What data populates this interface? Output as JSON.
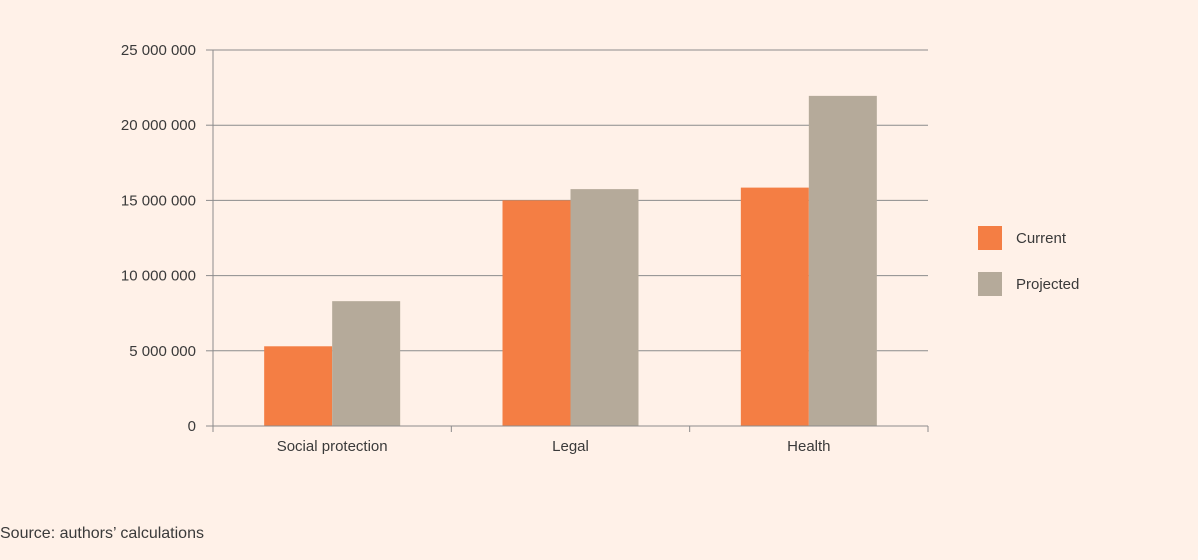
{
  "chart_data": {
    "type": "bar",
    "categories": [
      "Social protection",
      "Legal",
      "Health"
    ],
    "series": [
      {
        "name": "Current",
        "values": [
          5300000,
          15000000,
          15850000
        ],
        "color": "#f47e44"
      },
      {
        "name": "Projected",
        "values": [
          8300000,
          15750000,
          21950000
        ],
        "color": "#b5aa9a"
      }
    ],
    "ylim": [
      0,
      25000000
    ],
    "yticks": [
      0,
      5000000,
      10000000,
      15000000,
      20000000,
      25000000
    ],
    "ytick_labels": [
      "0",
      "5 000 000",
      "10 000 000",
      "15 000 000",
      "20 000 000",
      "25 000 000"
    ],
    "grid": true,
    "legend_position": "right",
    "gridline_color": "#8c8c8c"
  },
  "source": "Source: authors’ calculations"
}
